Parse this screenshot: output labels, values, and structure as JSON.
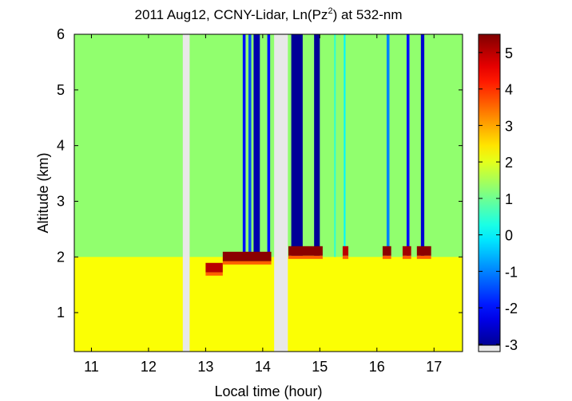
{
  "chart_data": {
    "type": "heatmap",
    "title": {
      "prefix": "2011 Aug12, CCNY-Lidar, Ln(Pz",
      "superscript": "2",
      "suffix": ") at 532-nm"
    },
    "xlabel": "Local time (hour)",
    "ylabel": "Altitude (km)",
    "xlim": [
      10.7,
      17.5
    ],
    "ylim": [
      0.3,
      6.0
    ],
    "xticks": [
      11,
      12,
      13,
      14,
      15,
      16,
      17
    ],
    "yticks": [
      1,
      2,
      3,
      4,
      5,
      6
    ],
    "colorbar": {
      "range": [
        -3.2,
        5.5
      ],
      "ticks": [
        -3,
        -2,
        -1,
        0,
        1,
        2,
        3,
        4,
        5
      ],
      "colormap": "jet",
      "nodata_color": "#e8e8e8"
    },
    "data_gaps": [
      [
        12.6,
        12.72
      ],
      [
        14.2,
        14.44
      ]
    ],
    "background": {
      "aloft_value": 1.3,
      "boundary_layer_value": 2.2,
      "boundary_layer_top_km": 2.0
    },
    "cloud_events": [
      {
        "start": 13.0,
        "end": 13.3,
        "cloud_base_km": 1.75,
        "value": 5.0
      },
      {
        "start": 13.3,
        "end": 14.15,
        "cloud_base_km": 1.95,
        "value": 5.4
      },
      {
        "start": 14.45,
        "end": 15.05,
        "cloud_base_km": 2.05,
        "value": 5.4
      },
      {
        "start": 15.4,
        "end": 15.5,
        "cloud_base_km": 2.05,
        "value": 5.0
      },
      {
        "start": 16.1,
        "end": 16.25,
        "cloud_base_km": 2.05,
        "value": 5.4
      },
      {
        "start": 16.45,
        "end": 16.6,
        "cloud_base_km": 2.05,
        "value": 5.2
      },
      {
        "start": 16.7,
        "end": 16.95,
        "cloud_base_km": 2.05,
        "value": 5.4
      }
    ],
    "attenuated_columns": [
      {
        "start": 13.65,
        "end": 13.7,
        "value": -2.0
      },
      {
        "start": 13.75,
        "end": 13.8,
        "value": -1.5
      },
      {
        "start": 13.84,
        "end": 13.95,
        "value": -2.8
      },
      {
        "start": 14.08,
        "end": 14.13,
        "value": -2.0
      },
      {
        "start": 14.5,
        "end": 14.7,
        "value": -3.0
      },
      {
        "start": 14.9,
        "end": 15.0,
        "value": -3.0
      },
      {
        "start": 15.25,
        "end": 15.28,
        "value": 0.5
      },
      {
        "start": 15.42,
        "end": 15.45,
        "value": 0.0
      },
      {
        "start": 16.17,
        "end": 16.22,
        "value": -1.0
      },
      {
        "start": 16.52,
        "end": 16.57,
        "value": -2.0
      },
      {
        "start": 16.77,
        "end": 16.83,
        "value": -2.5
      }
    ]
  }
}
